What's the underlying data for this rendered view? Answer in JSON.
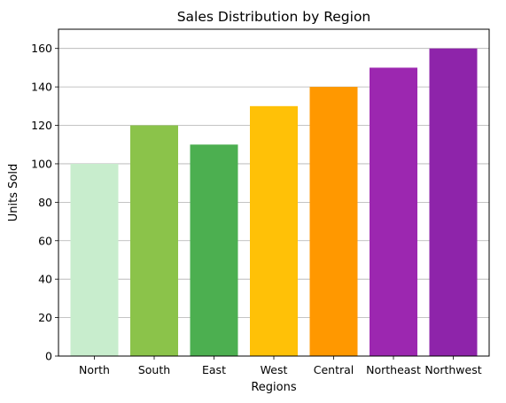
{
  "chart_data": {
    "type": "bar",
    "title": "Sales Distribution by Region",
    "xlabel": "Regions",
    "ylabel": "Units Sold",
    "categories": [
      "North",
      "South",
      "East",
      "West",
      "Central",
      "Northeast",
      "Northwest"
    ],
    "values": [
      100,
      120,
      110,
      130,
      140,
      150,
      160
    ],
    "colors": [
      "#c8edcd",
      "#8bc34a",
      "#4caf50",
      "#ffc107",
      "#ff9800",
      "#9c27b0",
      "#8e24aa"
    ],
    "ylim": [
      0,
      170
    ],
    "yticks": [
      0,
      20,
      40,
      60,
      80,
      100,
      120,
      140,
      160
    ],
    "grid": "y",
    "legend": "none"
  }
}
